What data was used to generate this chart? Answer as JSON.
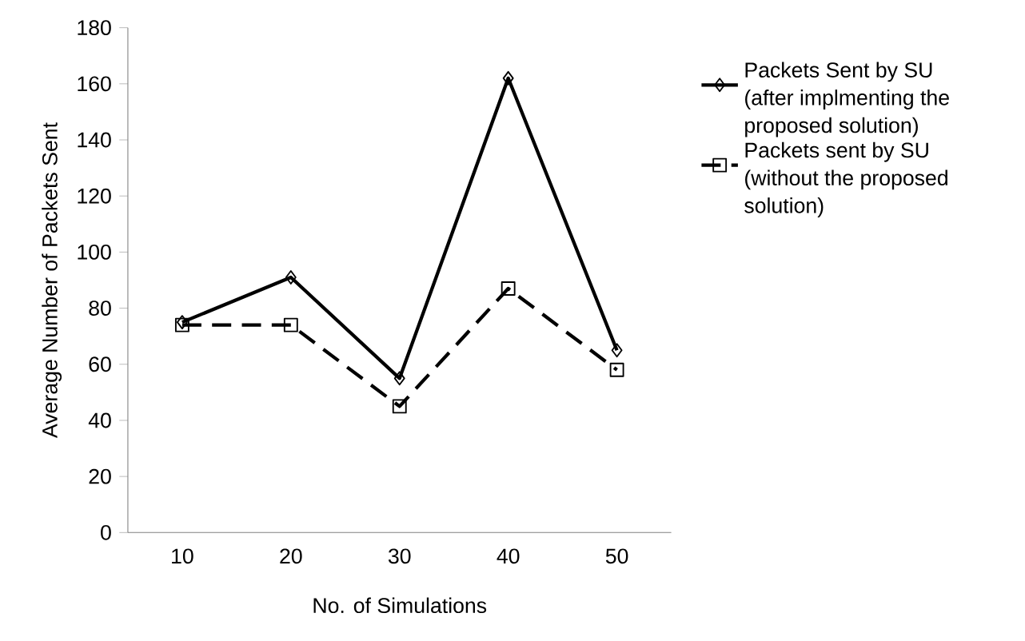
{
  "chart_data": {
    "type": "line",
    "xlabel": "No. of Simulations",
    "ylabel": "Average Number of Packets Sent",
    "categories": [
      "10",
      "20",
      "30",
      "40",
      "50"
    ],
    "series": [
      {
        "name": "Packets Sent by SU (after implmenting the proposed solution)",
        "color": "#000000",
        "marker": "diamond",
        "line_style": "solid",
        "values": [
          75,
          91,
          55,
          162,
          65
        ]
      },
      {
        "name": "Packets sent by SU (without the proposed solution)",
        "color": "#000000",
        "marker": "square",
        "line_style": "dashed",
        "values": [
          74,
          74,
          45,
          87,
          58
        ]
      }
    ],
    "ylim": [
      0,
      180
    ],
    "yticks": [
      0,
      20,
      40,
      60,
      80,
      100,
      120,
      140,
      160,
      180
    ],
    "grid": false,
    "legend": "right"
  }
}
